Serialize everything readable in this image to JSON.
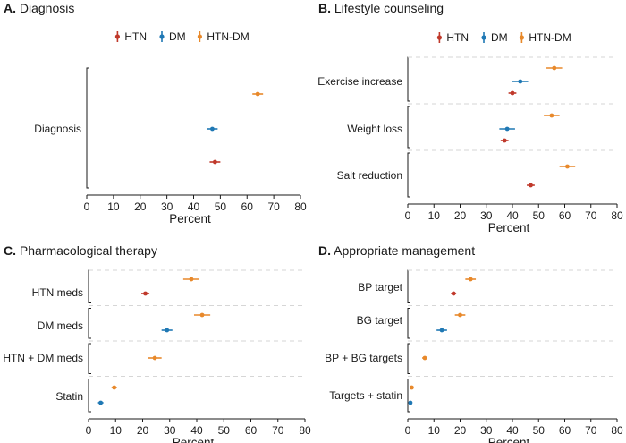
{
  "figure": {
    "x_axis_label": "Percent",
    "legend": [
      {
        "name": "HTN",
        "color": "#c0392b"
      },
      {
        "name": "DM",
        "color": "#1f78b4"
      },
      {
        "name": "HTN-DM",
        "color": "#e8892b"
      }
    ]
  },
  "chart_data": [
    {
      "type": "scatter",
      "letter": "A.",
      "title": "Diagnosis",
      "xlabel": "Percent",
      "xlim": [
        0,
        80
      ],
      "xticks": [
        0,
        10,
        20,
        30,
        40,
        50,
        60,
        70,
        80
      ],
      "show_legend": true,
      "groups": [
        {
          "label": "Diagnosis",
          "points": [
            {
              "series": "HTN-DM",
              "value": 64,
              "lo": 62,
              "hi": 66
            },
            {
              "series": "DM",
              "value": 47,
              "lo": 45,
              "hi": 49
            },
            {
              "series": "HTN",
              "value": 48,
              "lo": 46,
              "hi": 50
            }
          ]
        }
      ]
    },
    {
      "type": "scatter",
      "letter": "B.",
      "title": "Lifestyle counseling",
      "xlabel": "Percent",
      "xlim": [
        0,
        80
      ],
      "xticks": [
        0,
        10,
        20,
        30,
        40,
        50,
        60,
        70,
        80
      ],
      "show_legend": true,
      "groups": [
        {
          "label": "Exercise increase",
          "points": [
            {
              "series": "HTN-DM",
              "value": 56,
              "lo": 53,
              "hi": 59
            },
            {
              "series": "DM",
              "value": 43,
              "lo": 40,
              "hi": 46
            },
            {
              "series": "HTN",
              "value": 40,
              "lo": 38.5,
              "hi": 41.5
            }
          ]
        },
        {
          "label": "Weight loss",
          "points": [
            {
              "series": "HTN-DM",
              "value": 55,
              "lo": 52,
              "hi": 58
            },
            {
              "series": "DM",
              "value": 38,
              "lo": 35,
              "hi": 41
            },
            {
              "series": "HTN",
              "value": 37,
              "lo": 35.5,
              "hi": 38.5
            }
          ]
        },
        {
          "label": "Salt reduction",
          "points": [
            {
              "series": "HTN-DM",
              "value": 61,
              "lo": 58,
              "hi": 64
            },
            {
              "series": "HTN",
              "value": 47,
              "lo": 45.5,
              "hi": 48.5
            }
          ]
        }
      ]
    },
    {
      "type": "scatter",
      "letter": "C.",
      "title": "Pharmacological therapy",
      "xlabel": "Percent",
      "xlim": [
        0,
        80
      ],
      "xticks": [
        0,
        10,
        20,
        30,
        40,
        50,
        60,
        70,
        80
      ],
      "show_legend": false,
      "groups": [
        {
          "label": "HTN meds",
          "points": [
            {
              "series": "HTN-DM",
              "value": 38,
              "lo": 35,
              "hi": 41
            },
            {
              "series": "HTN",
              "value": 21,
              "lo": 19.5,
              "hi": 22.5
            }
          ]
        },
        {
          "label": "DM meds",
          "points": [
            {
              "series": "HTN-DM",
              "value": 42,
              "lo": 39,
              "hi": 45
            },
            {
              "series": "DM",
              "value": 29,
              "lo": 27,
              "hi": 31
            }
          ]
        },
        {
          "label": "HTN + DM meds",
          "points": [
            {
              "series": "HTN-DM",
              "value": 24.5,
              "lo": 22,
              "hi": 27
            }
          ]
        },
        {
          "label": "Statin",
          "points": [
            {
              "series": "HTN-DM",
              "value": 9.5,
              "lo": 8.5,
              "hi": 10.5
            },
            {
              "series": "DM",
              "value": 4.5,
              "lo": 3.5,
              "hi": 5.5
            }
          ]
        }
      ]
    },
    {
      "type": "scatter",
      "letter": "D.",
      "title": "Appropriate management",
      "xlabel": "Percent",
      "xlim": [
        0,
        80
      ],
      "xticks": [
        0,
        10,
        20,
        30,
        40,
        50,
        60,
        70,
        80
      ],
      "show_legend": false,
      "groups": [
        {
          "label": "BP target",
          "points": [
            {
              "series": "HTN-DM",
              "value": 24,
              "lo": 22,
              "hi": 26
            },
            {
              "series": "HTN",
              "value": 17.5,
              "lo": 16.5,
              "hi": 18.5
            }
          ]
        },
        {
          "label": "BG target",
          "points": [
            {
              "series": "HTN-DM",
              "value": 20,
              "lo": 18,
              "hi": 22
            },
            {
              "series": "DM",
              "value": 13,
              "lo": 11,
              "hi": 15
            }
          ]
        },
        {
          "label": "BP + BG targets",
          "points": [
            {
              "series": "HTN-DM",
              "value": 6.5,
              "lo": 5.5,
              "hi": 7.5
            }
          ]
        },
        {
          "label": "Targets + statin",
          "points": [
            {
              "series": "HTN-DM",
              "value": 1.5,
              "lo": 1,
              "hi": 2
            },
            {
              "series": "DM",
              "value": 1,
              "lo": 0.5,
              "hi": 1.5
            }
          ]
        }
      ]
    }
  ]
}
